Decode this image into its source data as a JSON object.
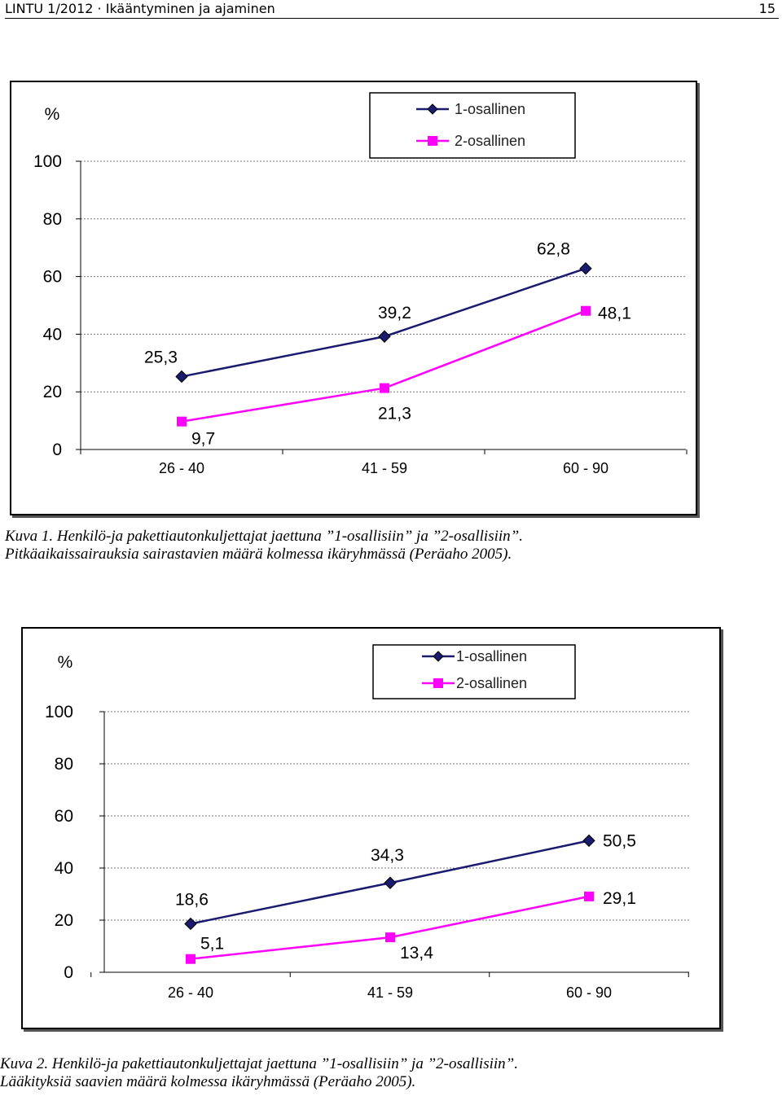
{
  "header": {
    "left": "LINTU 1/2012 · Ikääntyminen ja ajaminen",
    "page_number": "15"
  },
  "chart_data": [
    {
      "type": "line",
      "title": "",
      "ylabel": "%",
      "xlabel": "",
      "categories": [
        "26 - 40",
        "41 - 59",
        "60 - 90"
      ],
      "yticks": [
        "0",
        "20",
        "40",
        "60",
        "80",
        "100"
      ],
      "ylim": [
        0,
        100
      ],
      "grid": "horizontal dotted",
      "legend_position": "top-right",
      "series": [
        {
          "name": "1-osallinen",
          "values": [
            25.3,
            39.2,
            62.8
          ],
          "labels": [
            "25,3",
            "39,2",
            "62,8"
          ],
          "color": "#1a1a6e",
          "marker": "diamond"
        },
        {
          "name": "2-osallinen",
          "values": [
            9.7,
            21.3,
            48.1
          ],
          "labels": [
            "9,7",
            "21,3",
            "48,1"
          ],
          "color": "#ff00ff",
          "marker": "square"
        }
      ]
    },
    {
      "type": "line",
      "title": "",
      "ylabel": "%",
      "xlabel": "",
      "categories": [
        "26 - 40",
        "41 - 59",
        "60 - 90"
      ],
      "yticks": [
        "0",
        "20",
        "40",
        "60",
        "80",
        "100"
      ],
      "ylim": [
        0,
        100
      ],
      "grid": "horizontal dotted",
      "legend_position": "top-right",
      "series": [
        {
          "name": "1-osallinen",
          "values": [
            18.6,
            34.3,
            50.5
          ],
          "labels": [
            "18,6",
            "34,3",
            "50,5"
          ],
          "color": "#1a1a6e",
          "marker": "diamond"
        },
        {
          "name": "2-osallinen",
          "values": [
            5.1,
            13.4,
            29.1
          ],
          "labels": [
            "5,1",
            "13,4",
            "29,1"
          ],
          "color": "#ff00ff",
          "marker": "square"
        }
      ]
    }
  ],
  "captions": [
    {
      "line1": "Kuva 1. Henkilö-ja pakettiautonkuljettajat jaettuna ”1-osallisiin” ja ”2-osallisiin”.",
      "line2": "Pitkäaikaissairauksia sairastavien määrä kolmessa ikäryhmässä (Peräaho 2005)."
    },
    {
      "line1": "Kuva 2. Henkilö-ja pakettiautonkuljettajat jaettuna ”1-osallisiin” ja ”2-osallisiin”.",
      "line2": "Lääkityksiä saavien määrä kolmessa ikäryhmässä (Peräaho 2005)."
    }
  ]
}
